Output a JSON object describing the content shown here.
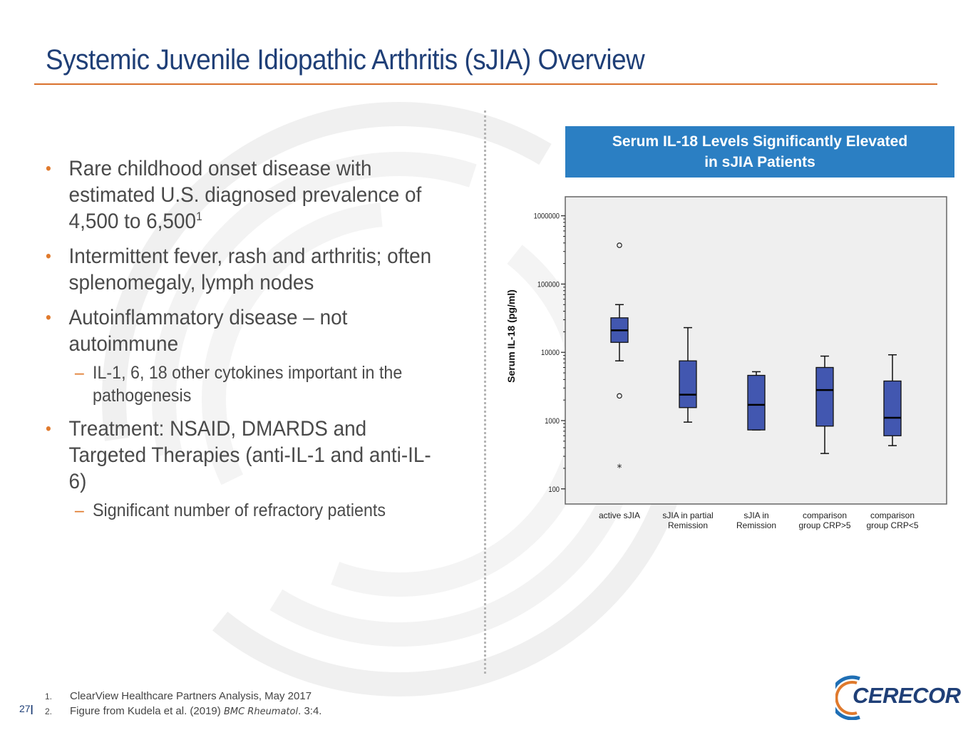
{
  "slide": {
    "title": "Systemic Juvenile Idiopathic Arthritis (sJIA) Overview",
    "page_number": "27"
  },
  "bullets": {
    "b1": {
      "text": "Rare childhood onset disease with estimated U.S. diagnosed prevalence of 4,500 to 6,500",
      "sup": "1"
    },
    "b2": {
      "text": "Intermittent fever, rash and arthritis; often splenomegaly, lymph nodes"
    },
    "b3": {
      "text": "Autoinflammatory disease – not autoimmune"
    },
    "b3_sub": {
      "text": "IL-1, 6, 18 other cytokines important in the pathogenesis"
    },
    "b4": {
      "text": "Treatment:  NSAID, DMARDS and Targeted Therapies (anti-IL-1 and anti-IL-6)"
    },
    "b4_sub": {
      "text": "Significant number of refractory patients"
    }
  },
  "chart_header": {
    "line1": "Serum IL-18 Levels Significantly Elevated",
    "line2": "in sJIA Patients"
  },
  "chart_data": {
    "type": "boxplot",
    "title": "Serum IL-18 Levels Significantly Elevated in sJIA Patients",
    "ylabel": "Serum IL-18 (pg/ml)",
    "yscale": "log",
    "ylim": [
      60,
      1900000
    ],
    "yticks": [
      100,
      1000,
      10000,
      100000,
      1000000
    ],
    "ytick_labels": [
      "100",
      "1000",
      "10000",
      "100000",
      "1000000"
    ],
    "categories": [
      {
        "line1": "active sJIA",
        "line2": ""
      },
      {
        "line1": "sJIA in partial",
        "line2": "Remission"
      },
      {
        "line1": "sJIA in",
        "line2": "Remission"
      },
      {
        "line1": "comparison",
        "line2": "group CRP>5"
      },
      {
        "line1": "comparison",
        "line2": "group CRP<5"
      }
    ],
    "boxes": [
      {
        "whisker_low": 7500,
        "q1": 14000,
        "median": 21000,
        "q3": 32000,
        "whisker_high": 50000,
        "outliers": [
          {
            "value": 370000,
            "marker": "circle"
          },
          {
            "value": 2300,
            "marker": "circle"
          },
          {
            "value": 210,
            "marker": "star"
          }
        ]
      },
      {
        "whisker_low": 950,
        "q1": 1550,
        "median": 2400,
        "q3": 7500,
        "whisker_high": 23000,
        "outliers": []
      },
      {
        "whisker_low": 730,
        "q1": 730,
        "median": 1700,
        "q3": 4600,
        "whisker_high": 5200,
        "outliers": []
      },
      {
        "whisker_low": 330,
        "q1": 830,
        "median": 2800,
        "q3": 6000,
        "whisker_high": 8800,
        "outliers": []
      },
      {
        "whisker_low": 430,
        "q1": 600,
        "median": 1100,
        "q3": 3800,
        "whisker_high": 9200,
        "outliers": []
      }
    ],
    "colors": {
      "box_fill": "#4257b0",
      "plot_bg": "#efefef"
    }
  },
  "footnotes": [
    {
      "num": "1.",
      "text": "ClearView Healthcare Partners Analysis, May 2017",
      "italic": "",
      "after": ""
    },
    {
      "num": "2.",
      "text": "Figure from Kudela et al. (2019) ",
      "italic": "BMC Rheumatol",
      "after": ". 3:4."
    }
  ],
  "logo": {
    "text": "CERECOR"
  },
  "colors": {
    "title": "#1f3f77",
    "accent": "#e07a2d",
    "header_blue": "#2b7fc3"
  }
}
